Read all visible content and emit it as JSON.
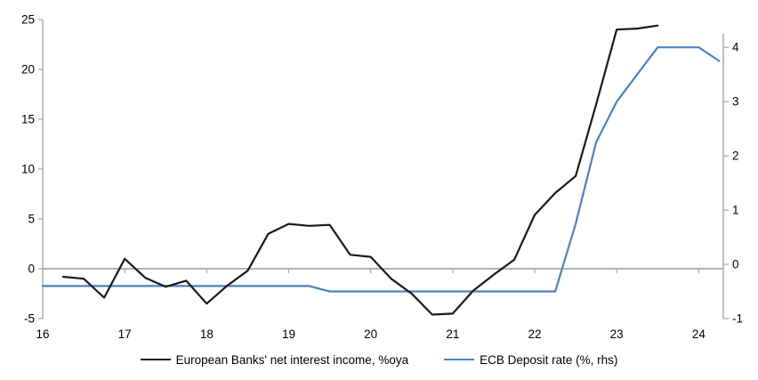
{
  "chart_data": {
    "type": "line",
    "title": "",
    "description": "Dual-axis quarterly line chart comparing European banks' net interest income growth with the ECB deposit rate",
    "x_axis": {
      "range": [
        16,
        24.3
      ],
      "tick_values": [
        16,
        17,
        18,
        19,
        20,
        21,
        22,
        23,
        24
      ],
      "tick_labels": [
        "16",
        "17",
        "18",
        "19",
        "20",
        "21",
        "22",
        "23",
        "24"
      ]
    },
    "left_axis": {
      "range": [
        -5,
        25
      ],
      "ticks": [
        25,
        20,
        15,
        10,
        5,
        0,
        -5
      ]
    },
    "right_axis": {
      "range": [
        -1,
        4.25
      ],
      "ticks": [
        4,
        3,
        2,
        1,
        0,
        -1
      ]
    },
    "grid": "zero line only",
    "legend_position": "bottom center",
    "axis_color": "#a6a6a6",
    "zero_line_color": "#a6a6a6",
    "label_color": "#000000",
    "series": [
      {
        "name": "European Banks' net interest income, %oya",
        "axis": "left",
        "color": "#1a1a1a",
        "x": [
          16.25,
          16.5,
          16.75,
          17.0,
          17.25,
          17.5,
          17.75,
          18.0,
          18.25,
          18.5,
          18.75,
          19.0,
          19.25,
          19.5,
          19.75,
          20.0,
          20.25,
          20.5,
          20.75,
          21.0,
          21.25,
          21.5,
          21.75,
          22.0,
          22.25,
          22.5,
          22.75,
          23.0,
          23.25,
          23.5
        ],
        "values": [
          -0.8,
          -1.0,
          -2.9,
          1.0,
          -0.9,
          -1.8,
          -1.2,
          -3.5,
          -1.7,
          -0.2,
          3.5,
          4.5,
          4.3,
          4.4,
          1.4,
          1.2,
          -1.0,
          -2.5,
          -4.6,
          -4.5,
          -2.2,
          -0.6,
          0.9,
          5.4,
          7.6,
          9.3,
          16.5,
          24.0,
          24.1,
          24.4
        ]
      },
      {
        "name": "ECB Deposit rate (%, rhs)",
        "axis": "right",
        "color": "#4f81bd",
        "x": [
          16.0,
          16.25,
          16.5,
          16.75,
          17.0,
          17.25,
          17.5,
          17.75,
          18.0,
          18.25,
          18.5,
          18.75,
          19.0,
          19.25,
          19.5,
          19.75,
          20.0,
          20.25,
          20.5,
          20.75,
          21.0,
          21.25,
          21.5,
          21.75,
          22.0,
          22.25,
          22.5,
          22.75,
          23.0,
          23.25,
          23.5,
          23.75,
          24.0,
          24.25
        ],
        "values": [
          -0.4,
          -0.4,
          -0.4,
          -0.4,
          -0.4,
          -0.4,
          -0.4,
          -0.4,
          -0.4,
          -0.4,
          -0.4,
          -0.4,
          -0.4,
          -0.4,
          -0.5,
          -0.5,
          -0.5,
          -0.5,
          -0.5,
          -0.5,
          -0.5,
          -0.5,
          -0.5,
          -0.5,
          -0.5,
          -0.5,
          0.75,
          2.25,
          3.0,
          3.5,
          4.0,
          4.0,
          4.0,
          3.75
        ]
      }
    ]
  }
}
